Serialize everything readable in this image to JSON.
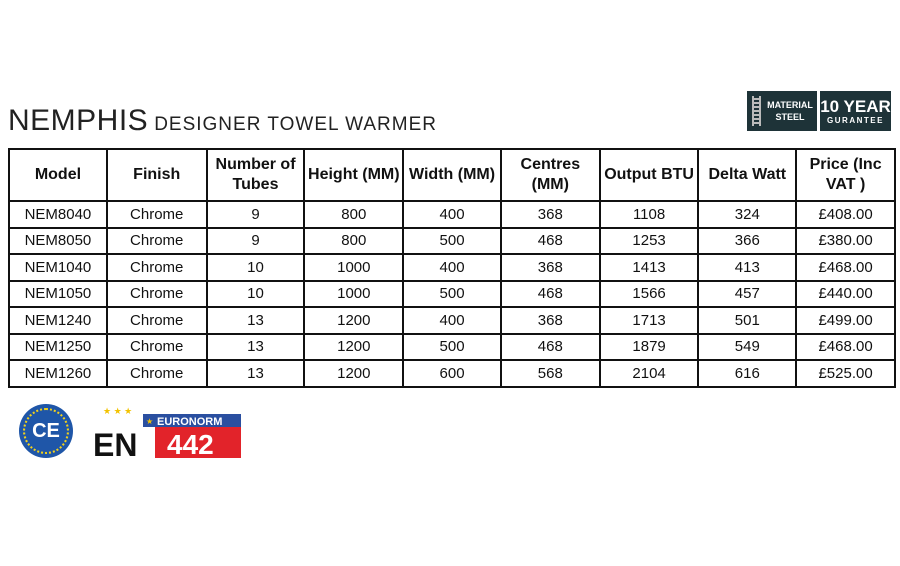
{
  "title": {
    "main": "NEMPHIS",
    "sub": "DESIGNER TOWEL WARMER"
  },
  "badges": {
    "material_line1": "MATERIAL",
    "material_line2": "STEEL",
    "guarantee_big": "10 YEAR",
    "guarantee_small": "GURANTEE"
  },
  "table": {
    "headers": [
      "Model",
      "Finish",
      "Number of Tubes",
      "Height (MM)",
      "Width (MM)",
      "Centres (MM)",
      "Output BTU",
      "Delta Watt",
      "Price (Inc VAT )"
    ],
    "rows": [
      [
        "NEM8040",
        "Chrome",
        "9",
        "800",
        "400",
        "368",
        "1108",
        "324",
        "£408.00"
      ],
      [
        "NEM8050",
        "Chrome",
        "9",
        "800",
        "500",
        "468",
        "1253",
        "366",
        "£380.00"
      ],
      [
        "NEM1040",
        "Chrome",
        "10",
        "1000",
        "400",
        "368",
        "1413",
        "413",
        "£468.00"
      ],
      [
        "NEM1050",
        "Chrome",
        "10",
        "1000",
        "500",
        "468",
        "1566",
        "457",
        "£440.00"
      ],
      [
        "NEM1240",
        "Chrome",
        "13",
        "1200",
        "400",
        "368",
        "1713",
        "501",
        "£499.00"
      ],
      [
        "NEM1250",
        "Chrome",
        "13",
        "1200",
        "500",
        "468",
        "1879",
        "549",
        "£468.00"
      ],
      [
        "NEM1260",
        "Chrome",
        "13",
        "1200",
        "600",
        "568",
        "2104",
        "616",
        "£525.00"
      ]
    ]
  },
  "logos": {
    "ce": "CE",
    "en": "EN",
    "euronorm": "EURONORM",
    "en_number": "442"
  },
  "colors": {
    "badge": "#1e3338",
    "ce_blue": "#1f56a8",
    "euronorm_blue": "#2a4fa0",
    "en_red": "#e2232a"
  }
}
